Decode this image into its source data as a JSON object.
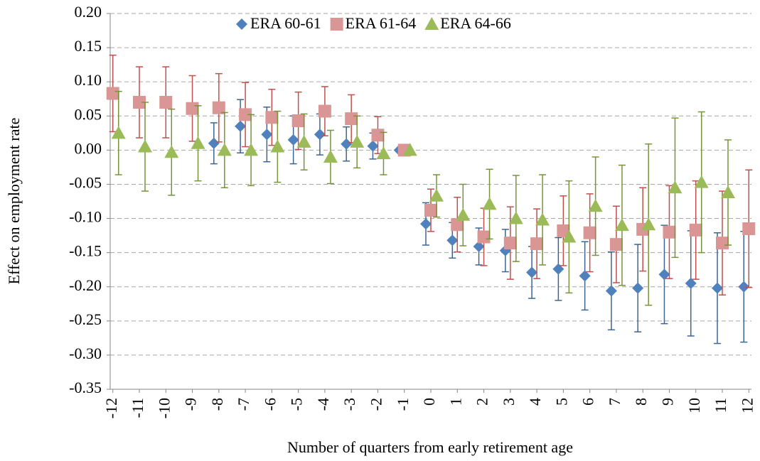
{
  "chart_data": {
    "type": "scatter",
    "y_label": "Effect on employment rate",
    "x_label": "Number of quarters from early retirement age",
    "x": [
      -12,
      -11,
      -10,
      -9,
      -8,
      -7,
      -6,
      -5,
      -4,
      -3,
      -2,
      -1,
      0,
      1,
      2,
      3,
      4,
      5,
      6,
      7,
      8,
      9,
      10,
      11,
      12
    ],
    "xlim": [
      -12.1,
      12.1
    ],
    "ylim": [
      -0.35,
      0.2
    ],
    "yticks": [
      {
        "value": 0.2,
        "label": "0.20"
      },
      {
        "value": 0.15,
        "label": "0.15"
      },
      {
        "value": 0.1,
        "label": "0.10"
      },
      {
        "value": 0.05,
        "label": "0.05"
      },
      {
        "value": 0,
        "label": "0.00"
      },
      {
        "value": -0.05,
        "label": "-0.05"
      },
      {
        "value": -0.1,
        "label": "-0.10"
      },
      {
        "value": -0.15,
        "label": "-0.15"
      },
      {
        "value": -0.2,
        "label": "-0.20"
      },
      {
        "value": -0.25,
        "label": "-0.25"
      },
      {
        "value": -0.3,
        "label": "-0.30"
      },
      {
        "value": -0.35,
        "label": "-0.35"
      }
    ],
    "grid": true,
    "legend": "top",
    "series": [
      {
        "name": "ERA 60-61",
        "color": "#4f81bd",
        "error_color": "#3d6591",
        "marker": "diamond",
        "values": [
          null,
          null,
          null,
          null,
          0.01,
          0.035,
          0.023,
          0.015,
          0.023,
          0.009,
          0.006,
          0.0,
          -0.108,
          -0.132,
          -0.141,
          -0.147,
          -0.179,
          -0.174,
          -0.184,
          -0.206,
          -0.202,
          -0.182,
          -0.195,
          -0.202,
          -0.2
        ],
        "errors": [
          null,
          null,
          null,
          null,
          0.03,
          0.039,
          0.04,
          0.035,
          0.03,
          0.025,
          0.019,
          0,
          0.031,
          0.026,
          0.027,
          0.031,
          0.038,
          0.046,
          0.05,
          0.057,
          0.064,
          0.072,
          0.077,
          0.081,
          0.081
        ]
      },
      {
        "name": "ERA 61-64",
        "color": "#d99694",
        "error_color": "#c0504d",
        "marker": "square",
        "values": [
          0.083,
          0.07,
          0.07,
          0.061,
          0.062,
          0.052,
          0.048,
          0.043,
          0.057,
          0.046,
          0.022,
          0.0,
          -0.088,
          -0.109,
          -0.127,
          -0.136,
          -0.137,
          -0.118,
          -0.121,
          -0.138,
          -0.116,
          -0.12,
          -0.117,
          -0.136,
          -0.115
        ],
        "errors": [
          0.056,
          0.052,
          0.052,
          0.048,
          0.05,
          0.047,
          0.041,
          0.042,
          0.036,
          0.035,
          0.027,
          0,
          0.031,
          0.04,
          0.042,
          0.053,
          0.051,
          0.051,
          0.057,
          0.056,
          0.061,
          0.068,
          0.072,
          0.076,
          0.086
        ]
      },
      {
        "name": "ERA 64-66",
        "color": "#9bbb59",
        "error_color": "#77933c",
        "marker": "triangle",
        "values": [
          0.025,
          0.005,
          -0.003,
          0.01,
          0.0,
          0.0,
          0.005,
          0.012,
          -0.01,
          0.012,
          -0.005,
          0.0,
          -0.067,
          -0.095,
          -0.079,
          -0.1,
          -0.102,
          -0.127,
          -0.082,
          -0.11,
          -0.109,
          -0.055,
          -0.047,
          -0.062,
          null
        ],
        "errors": [
          0.061,
          0.065,
          0.063,
          0.055,
          0.055,
          0.052,
          0.052,
          0.041,
          0.039,
          0.038,
          0.031,
          0,
          0.031,
          0.045,
          0.051,
          0.063,
          0.066,
          0.082,
          0.072,
          0.088,
          0.118,
          0.102,
          0.103,
          0.077,
          null
        ]
      }
    ]
  }
}
